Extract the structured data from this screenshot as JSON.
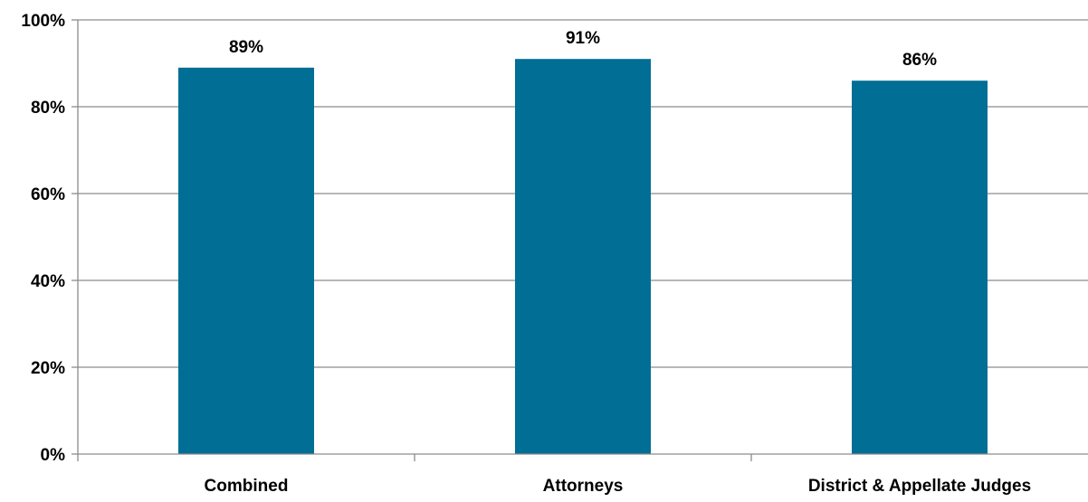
{
  "chart_data": {
    "type": "bar",
    "categories": [
      "Combined",
      "Attorneys",
      "District & Appellate Judges"
    ],
    "values": [
      89,
      91,
      86
    ],
    "data_labels": [
      "89%",
      "91%",
      "86%"
    ],
    "yticks": [
      0,
      20,
      40,
      60,
      80,
      100
    ],
    "ytick_labels": [
      "0%",
      "20%",
      "40%",
      "60%",
      "80%",
      "100%"
    ],
    "ylim": [
      0,
      100
    ],
    "grid": true,
    "legend": "none",
    "bar_color": "#006e95"
  }
}
